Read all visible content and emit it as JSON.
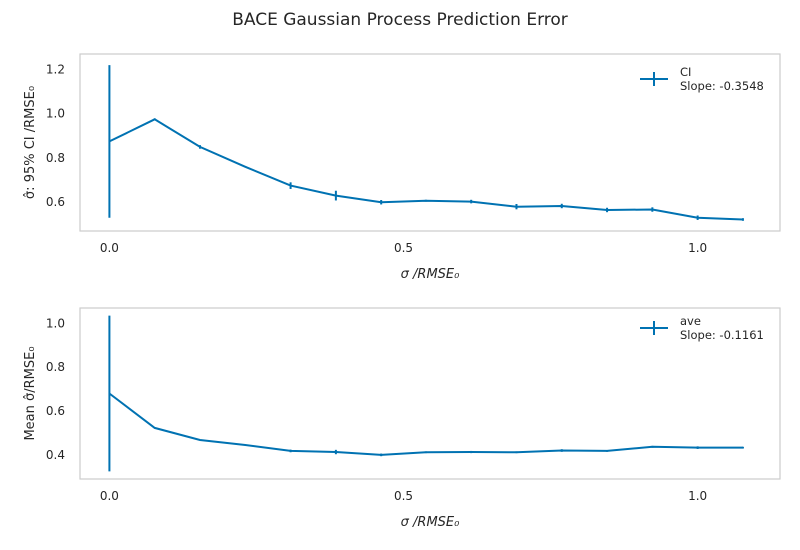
{
  "figure": {
    "title": "BACE Gaussian Process Prediction Error"
  },
  "chart_data": [
    {
      "type": "line",
      "xlabel": "σ /RMSE₀",
      "ylabel": "σ̂: 95% CI /RMSE₀",
      "xlim": [
        -0.05,
        1.14
      ],
      "ylim": [
        0.47,
        1.27
      ],
      "xticks": [
        0.0,
        0.5,
        1.0
      ],
      "xtick_labels": [
        "0.0",
        "0.5",
        "1.0"
      ],
      "yticks": [
        0.6,
        0.8,
        1.0,
        1.2
      ],
      "ytick_labels": [
        "0.6",
        "0.8",
        "1.0",
        "1.2"
      ],
      "grid": false,
      "legend_position": "top-right",
      "color": "#0072b2",
      "series": [
        {
          "name": "CI",
          "label_line2": "Slope: -0.3548",
          "x": [
            0.0,
            0.077,
            0.154,
            0.231,
            0.308,
            0.385,
            0.462,
            0.538,
            0.615,
            0.692,
            0.769,
            0.846,
            0.923,
            1.0,
            1.077
          ],
          "y": [
            0.875,
            0.975,
            0.85,
            0.76,
            0.675,
            0.63,
            0.6,
            0.607,
            0.603,
            0.58,
            0.583,
            0.565,
            0.567,
            0.53,
            0.522
          ],
          "err": [
            0.345,
            0.004,
            0.008,
            0.003,
            0.015,
            0.022,
            0.01,
            0.004,
            0.008,
            0.012,
            0.01,
            0.01,
            0.01,
            0.01,
            0.006
          ]
        }
      ]
    },
    {
      "type": "line",
      "xlabel": "σ /RMSE₀",
      "ylabel": "Mean σ̂/RMSE₀",
      "xlim": [
        -0.05,
        1.14
      ],
      "ylim": [
        0.29,
        1.07
      ],
      "xticks": [
        0.0,
        0.5,
        1.0
      ],
      "xtick_labels": [
        "0.0",
        "0.5",
        "1.0"
      ],
      "yticks": [
        0.4,
        0.6,
        0.8,
        1.0
      ],
      "ytick_labels": [
        "0.4",
        "0.6",
        "0.8",
        "1.0"
      ],
      "grid": false,
      "legend_position": "top-right",
      "color": "#0072b2",
      "series": [
        {
          "name": "ave",
          "label_line2": "Slope: -0.1161",
          "x": [
            0.0,
            0.077,
            0.154,
            0.231,
            0.308,
            0.385,
            0.462,
            0.538,
            0.615,
            0.692,
            0.769,
            0.846,
            0.923,
            1.0,
            1.077
          ],
          "y": [
            0.68,
            0.523,
            0.468,
            0.445,
            0.418,
            0.413,
            0.4,
            0.412,
            0.413,
            0.412,
            0.42,
            0.418,
            0.437,
            0.433,
            0.433
          ],
          "err": [
            0.355,
            0.002,
            0.002,
            0.002,
            0.006,
            0.01,
            0.006,
            0.004,
            0.005,
            0.004,
            0.006,
            0.004,
            0.004,
            0.006,
            0.004
          ]
        }
      ]
    }
  ]
}
